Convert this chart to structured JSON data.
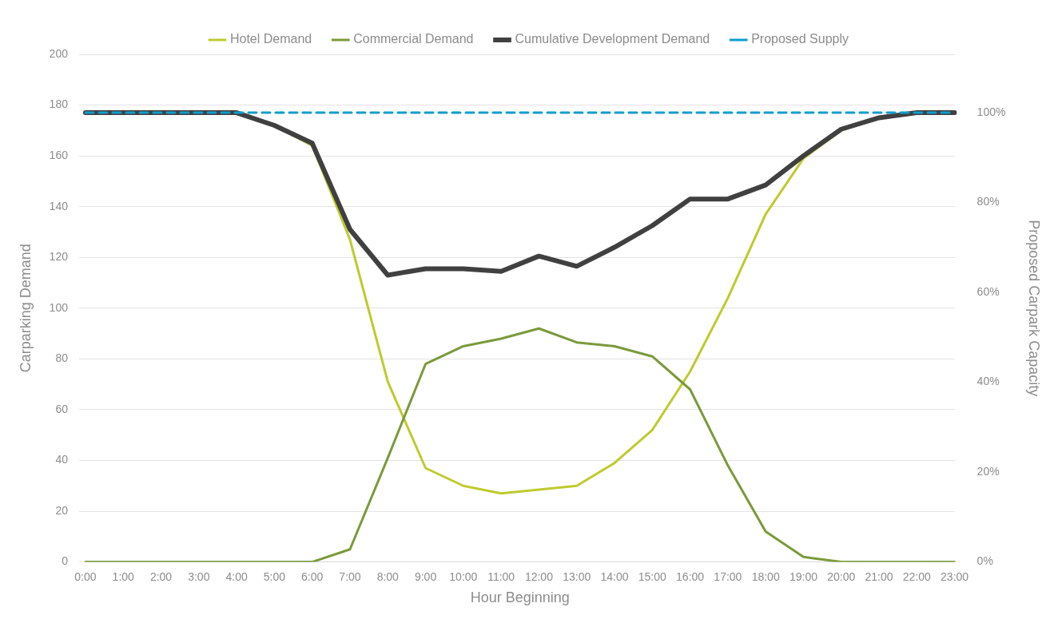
{
  "chart_data": {
    "type": "line",
    "xlabel": "Hour Beginning",
    "ylabel": "Carparking Demand",
    "y2label": "Proposed Carpark Capacity",
    "categories": [
      "0:00",
      "1:00",
      "2:00",
      "3:00",
      "4:00",
      "5:00",
      "6:00",
      "7:00",
      "8:00",
      "9:00",
      "10:00",
      "11:00",
      "12:00",
      "13:00",
      "14:00",
      "15:00",
      "16:00",
      "17:00",
      "18:00",
      "19:00",
      "20:00",
      "21:00",
      "22:00",
      "23:00"
    ],
    "series": [
      {
        "name": "Hotel Demand",
        "color": "#bfca2e",
        "values": [
          null,
          null,
          null,
          null,
          null,
          172,
          164,
          127,
          71,
          37,
          30,
          27,
          28.5,
          30,
          39,
          52,
          75,
          104,
          137,
          159,
          170,
          175,
          null,
          null
        ]
      },
      {
        "name": "Commercial Demand",
        "color": "#7a9a3a",
        "values": [
          0,
          0,
          0,
          0,
          0,
          0,
          0,
          5,
          41,
          78,
          85,
          88,
          92,
          86.5,
          85,
          81,
          68,
          38,
          12,
          2,
          0,
          0,
          0,
          0
        ]
      },
      {
        "name": "Cumulative Development Demand",
        "color": "#404040",
        "values": [
          177,
          177,
          177,
          177,
          177,
          172,
          165,
          131,
          113,
          115.5,
          115.5,
          114.5,
          120.5,
          116.5,
          124,
          132.5,
          143,
          143,
          148.5,
          160,
          170.5,
          175,
          177,
          177
        ]
      },
      {
        "name": "Proposed Supply",
        "color": "#0f9dcc",
        "line_style": "dashed",
        "values": [
          177,
          177,
          177,
          177,
          177,
          177,
          177,
          177,
          177,
          177,
          177,
          177,
          177,
          177,
          177,
          177,
          177,
          177,
          177,
          177,
          177,
          177,
          177,
          177
        ]
      }
    ],
    "ylim": [
      0,
      200
    ],
    "yticks": [
      0,
      20,
      40,
      60,
      80,
      100,
      120,
      140,
      160,
      180,
      200
    ],
    "y2lim": [
      0,
      113
    ],
    "y2ticks": [
      {
        "value": 0,
        "label": "0%"
      },
      {
        "value": 20,
        "label": "20%"
      },
      {
        "value": 40,
        "label": "40%"
      },
      {
        "value": 60,
        "label": "60%"
      },
      {
        "value": 80,
        "label": "80%"
      },
      {
        "value": 100,
        "label": "100%"
      }
    ],
    "grid": "y",
    "legend": "top",
    "marker": "none",
    "line_style": "solid"
  }
}
